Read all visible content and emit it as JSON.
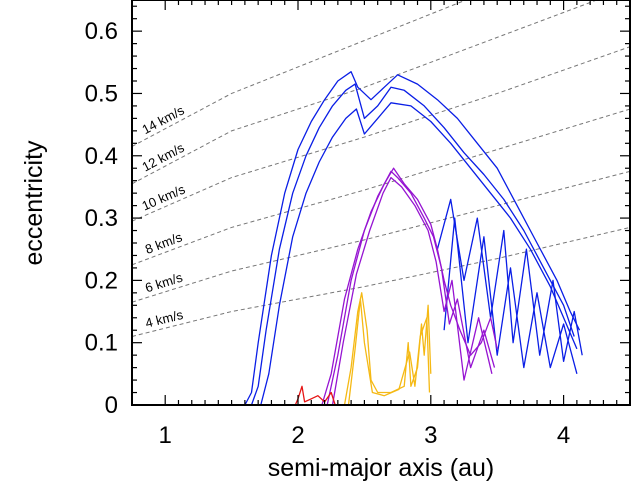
{
  "chart_data": {
    "type": "line",
    "xlabel": "semi-major axis (au)",
    "ylabel": "eccentricity",
    "xlim": [
      0.75,
      4.5
    ],
    "ylim": [
      0,
      0.65
    ],
    "xticks": [
      1,
      2,
      3,
      4
    ],
    "xtick_labels": [
      "1",
      "2",
      "3",
      "4"
    ],
    "yticks": [
      0,
      0.1,
      0.2,
      0.3,
      0.4,
      0.5,
      0.6
    ],
    "ytick_labels": [
      "0",
      "0.1",
      "0.2",
      "0.3",
      "0.4",
      "0.5",
      "0.6"
    ],
    "grid": false,
    "reference_curves": [
      {
        "label": "4 km/s",
        "points": [
          [
            0.75,
            0.11
          ],
          [
            1.5,
            0.15
          ],
          [
            2.5,
            0.19
          ],
          [
            3.5,
            0.235
          ],
          [
            4.5,
            0.285
          ]
        ]
      },
      {
        "label": "6 km/s",
        "points": [
          [
            0.75,
            0.165
          ],
          [
            1.5,
            0.215
          ],
          [
            2.5,
            0.265
          ],
          [
            3.5,
            0.32
          ],
          [
            4.5,
            0.375
          ]
        ]
      },
      {
        "label": "8 km/s",
        "points": [
          [
            0.75,
            0.225
          ],
          [
            1.5,
            0.285
          ],
          [
            2.5,
            0.345
          ],
          [
            3.5,
            0.41
          ],
          [
            4.5,
            0.475
          ]
        ]
      },
      {
        "label": "10 km/s",
        "points": [
          [
            0.75,
            0.295
          ],
          [
            1.5,
            0.365
          ],
          [
            2.5,
            0.43
          ],
          [
            3.5,
            0.5
          ],
          [
            4.5,
            0.575
          ]
        ]
      },
      {
        "label": "12 km/s",
        "points": [
          [
            0.75,
            0.355
          ],
          [
            1.5,
            0.44
          ],
          [
            2.5,
            0.51
          ],
          [
            3.5,
            0.59
          ],
          [
            4.5,
            0.67
          ]
        ]
      },
      {
        "label": "14 km/s",
        "points": [
          [
            0.75,
            0.415
          ],
          [
            1.5,
            0.5
          ],
          [
            2.5,
            0.585
          ],
          [
            3.5,
            0.67
          ]
        ]
      }
    ],
    "series": [
      {
        "color": "#0a1ee6",
        "tracks": [
          [
            [
              1.6,
              0.0
            ],
            [
              1.65,
              0.02
            ],
            [
              1.7,
              0.1
            ],
            [
              1.8,
              0.24
            ],
            [
              1.9,
              0.34
            ],
            [
              2.0,
              0.41
            ],
            [
              2.1,
              0.455
            ],
            [
              2.2,
              0.49
            ],
            [
              2.3,
              0.52
            ],
            [
              2.4,
              0.535
            ],
            [
              2.45,
              0.51
            ],
            [
              2.55,
              0.49
            ],
            [
              2.65,
              0.51
            ],
            [
              2.75,
              0.53
            ],
            [
              2.9,
              0.515
            ],
            [
              3.05,
              0.49
            ],
            [
              3.2,
              0.46
            ],
            [
              3.35,
              0.42
            ],
            [
              3.5,
              0.38
            ],
            [
              3.65,
              0.32
            ],
            [
              3.8,
              0.26
            ],
            [
              3.95,
              0.2
            ],
            [
              4.05,
              0.15
            ],
            [
              4.12,
              0.12
            ]
          ],
          [
            [
              1.65,
              0.0
            ],
            [
              1.7,
              0.03
            ],
            [
              1.76,
              0.12
            ],
            [
              1.86,
              0.25
            ],
            [
              1.96,
              0.34
            ],
            [
              2.06,
              0.4
            ],
            [
              2.16,
              0.445
            ],
            [
              2.26,
              0.48
            ],
            [
              2.36,
              0.505
            ],
            [
              2.43,
              0.515
            ],
            [
              2.5,
              0.46
            ],
            [
              2.6,
              0.48
            ],
            [
              2.7,
              0.51
            ],
            [
              2.8,
              0.505
            ],
            [
              2.95,
              0.48
            ],
            [
              3.1,
              0.445
            ],
            [
              3.25,
              0.405
            ],
            [
              3.4,
              0.37
            ],
            [
              3.55,
              0.33
            ],
            [
              3.7,
              0.28
            ],
            [
              3.85,
              0.22
            ],
            [
              4.0,
              0.16
            ],
            [
              4.08,
              0.11
            ]
          ],
          [
            [
              1.72,
              0.0
            ],
            [
              1.78,
              0.05
            ],
            [
              1.86,
              0.16
            ],
            [
              1.96,
              0.27
            ],
            [
              2.06,
              0.34
            ],
            [
              2.16,
              0.39
            ],
            [
              2.26,
              0.43
            ],
            [
              2.36,
              0.46
            ],
            [
              2.44,
              0.475
            ],
            [
              2.5,
              0.435
            ],
            [
              2.6,
              0.46
            ],
            [
              2.7,
              0.485
            ],
            [
              2.85,
              0.48
            ],
            [
              3.0,
              0.455
            ],
            [
              3.15,
              0.42
            ],
            [
              3.3,
              0.38
            ],
            [
              3.45,
              0.34
            ],
            [
              3.6,
              0.3
            ],
            [
              3.75,
              0.25
            ],
            [
              3.9,
              0.19
            ],
            [
              4.02,
              0.13
            ],
            [
              4.1,
              0.09
            ]
          ],
          [
            [
              3.05,
              0.25
            ],
            [
              3.15,
              0.33
            ],
            [
              3.25,
              0.2
            ],
            [
              3.35,
              0.3
            ],
            [
              3.45,
              0.14
            ],
            [
              3.55,
              0.28
            ],
            [
              3.62,
              0.1
            ],
            [
              3.72,
              0.25
            ],
            [
              3.82,
              0.08
            ],
            [
              3.92,
              0.2
            ],
            [
              4.0,
              0.07
            ],
            [
              4.08,
              0.15
            ],
            [
              4.14,
              0.08
            ]
          ],
          [
            [
              3.1,
              0.12
            ],
            [
              3.18,
              0.3
            ],
            [
              3.28,
              0.1
            ],
            [
              3.4,
              0.27
            ],
            [
              3.5,
              0.08
            ],
            [
              3.6,
              0.22
            ],
            [
              3.7,
              0.06
            ],
            [
              3.8,
              0.18
            ],
            [
              3.9,
              0.06
            ],
            [
              4.0,
              0.13
            ],
            [
              4.1,
              0.05
            ]
          ]
        ]
      },
      {
        "color": "#9614d2",
        "tracks": [
          [
            [
              2.18,
              0.0
            ],
            [
              2.25,
              0.05
            ],
            [
              2.35,
              0.17
            ],
            [
              2.45,
              0.25
            ],
            [
              2.55,
              0.31
            ],
            [
              2.65,
              0.355
            ],
            [
              2.72,
              0.38
            ],
            [
              2.8,
              0.355
            ],
            [
              2.9,
              0.33
            ],
            [
              3.0,
              0.29
            ],
            [
              3.05,
              0.25
            ],
            [
              3.1,
              0.2
            ],
            [
              3.15,
              0.16
            ],
            [
              3.22,
              0.12
            ],
            [
              3.3,
              0.08
            ],
            [
              3.38,
              0.1
            ],
            [
              3.45,
              0.14
            ],
            [
              3.5,
              0.09
            ]
          ],
          [
            [
              2.22,
              0.0
            ],
            [
              2.3,
              0.08
            ],
            [
              2.4,
              0.2
            ],
            [
              2.5,
              0.28
            ],
            [
              2.6,
              0.335
            ],
            [
              2.7,
              0.375
            ],
            [
              2.75,
              0.365
            ],
            [
              2.85,
              0.34
            ],
            [
              2.95,
              0.3
            ],
            [
              3.02,
              0.27
            ],
            [
              3.08,
              0.22
            ],
            [
              3.14,
              0.13
            ],
            [
              3.2,
              0.17
            ],
            [
              3.3,
              0.06
            ],
            [
              3.4,
              0.12
            ],
            [
              3.48,
              0.06
            ]
          ],
          [
            [
              2.26,
              0.0
            ],
            [
              2.34,
              0.1
            ],
            [
              2.44,
              0.21
            ],
            [
              2.54,
              0.28
            ],
            [
              2.64,
              0.34
            ],
            [
              2.7,
              0.365
            ],
            [
              2.78,
              0.35
            ],
            [
              2.88,
              0.32
            ],
            [
              2.98,
              0.28
            ],
            [
              3.04,
              0.23
            ],
            [
              3.1,
              0.15
            ],
            [
              3.16,
              0.2
            ],
            [
              3.25,
              0.04
            ],
            [
              3.36,
              0.14
            ],
            [
              3.46,
              0.05
            ]
          ]
        ]
      },
      {
        "color": "#f5b914",
        "tracks": [
          [
            [
              2.35,
              0.0
            ],
            [
              2.4,
              0.06
            ],
            [
              2.45,
              0.15
            ],
            [
              2.48,
              0.18
            ],
            [
              2.52,
              0.12
            ],
            [
              2.55,
              0.04
            ],
            [
              2.6,
              0.02
            ],
            [
              2.7,
              0.02
            ],
            [
              2.8,
              0.03
            ],
            [
              2.83,
              0.1
            ],
            [
              2.85,
              0.03
            ],
            [
              2.9,
              0.06
            ],
            [
              2.93,
              0.13
            ],
            [
              2.95,
              0.08
            ],
            [
              2.98,
              0.16
            ],
            [
              3.0,
              0.05
            ]
          ],
          [
            [
              2.38,
              0.0
            ],
            [
              2.43,
              0.09
            ],
            [
              2.47,
              0.17
            ],
            [
              2.5,
              0.1
            ],
            [
              2.56,
              0.02
            ],
            [
              2.65,
              0.015
            ],
            [
              2.76,
              0.025
            ],
            [
              2.84,
              0.085
            ],
            [
              2.88,
              0.03
            ],
            [
              2.92,
              0.11
            ],
            [
              2.97,
              0.14
            ],
            [
              2.99,
              0.02
            ]
          ]
        ]
      },
      {
        "color": "#e61414",
        "tracks": [
          [
            [
              1.98,
              0.0
            ],
            [
              2.0,
              0.01
            ],
            [
              2.03,
              0.03
            ],
            [
              2.05,
              0.005
            ],
            [
              2.1,
              0.01
            ],
            [
              2.15,
              0.015
            ],
            [
              2.2,
              0.005
            ],
            [
              2.25,
              0.02
            ],
            [
              2.28,
              0.0
            ]
          ]
        ]
      }
    ]
  }
}
